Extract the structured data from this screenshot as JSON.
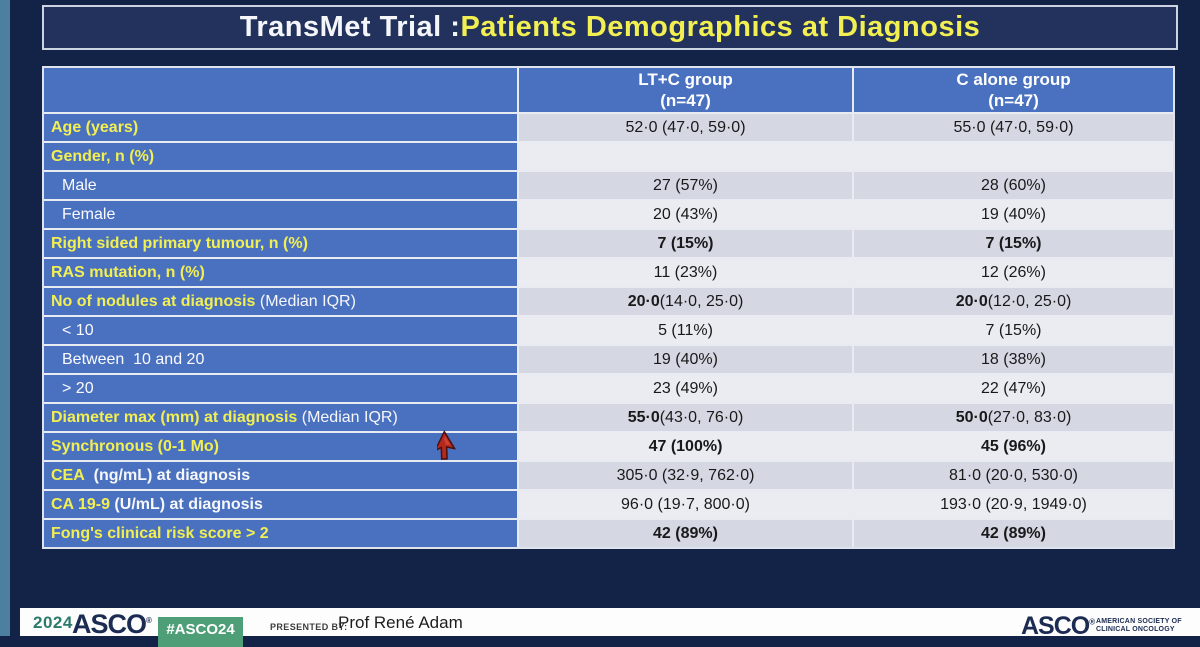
{
  "title": {
    "prefix": "TransMet Trial : ",
    "highlight": "Patients Demographics at Diagnosis"
  },
  "table": {
    "headers": [
      {
        "line1": "LT+C group",
        "line2": "(n=47)"
      },
      {
        "line1": "C alone group",
        "line2": "(n=47)"
      }
    ],
    "rows": [
      {
        "y": "Age (years)",
        "w": "",
        "sub": false,
        "wb": false,
        "v": [
          {
            "b": "",
            "r": "52·0 (47·0, 59·0)"
          },
          {
            "b": "",
            "r": "55·0 (47·0, 59·0)"
          }
        ]
      },
      {
        "y": "Gender, n (%)",
        "w": "",
        "sub": false,
        "wb": false,
        "v": [
          {
            "b": "",
            "r": ""
          },
          {
            "b": "",
            "r": ""
          }
        ]
      },
      {
        "y": "",
        "w": "Male",
        "sub": true,
        "wb": false,
        "v": [
          {
            "b": "",
            "r": "27 (57%)"
          },
          {
            "b": "",
            "r": "28 (60%)"
          }
        ]
      },
      {
        "y": "",
        "w": "Female",
        "sub": true,
        "wb": false,
        "v": [
          {
            "b": "",
            "r": "20 (43%)"
          },
          {
            "b": "",
            "r": "19 (40%)"
          }
        ]
      },
      {
        "y": "Right sided primary tumour, n (%)",
        "w": "",
        "sub": false,
        "wb": false,
        "v": [
          {
            "b": "7 (15%)",
            "r": ""
          },
          {
            "b": "7 (15%)",
            "r": ""
          }
        ]
      },
      {
        "y": "RAS mutation, n (%)",
        "w": "",
        "sub": false,
        "wb": false,
        "v": [
          {
            "b": "",
            "r": "11 (23%)"
          },
          {
            "b": "",
            "r": "12 (26%)"
          }
        ]
      },
      {
        "y": "No of nodules at diagnosis",
        "w": " (Median IQR)",
        "sub": false,
        "wb": false,
        "v": [
          {
            "b": "20·0",
            "r": " (14·0, 25·0)"
          },
          {
            "b": "20·0",
            "r": " (12·0, 25·0)"
          }
        ]
      },
      {
        "y": "",
        "w": "< 10",
        "sub": true,
        "wb": false,
        "v": [
          {
            "b": "",
            "r": "5 (11%)"
          },
          {
            "b": "",
            "r": "7 (15%)"
          }
        ]
      },
      {
        "y": "",
        "w": "Between  10 and 20",
        "sub": true,
        "wb": false,
        "v": [
          {
            "b": "",
            "r": "19 (40%)"
          },
          {
            "b": "",
            "r": "18 (38%)"
          }
        ]
      },
      {
        "y": "",
        "w": "> 20",
        "sub": true,
        "wb": false,
        "v": [
          {
            "b": "",
            "r": "23 (49%)"
          },
          {
            "b": "",
            "r": "22 (47%)"
          }
        ]
      },
      {
        "y": "Diameter max (mm) at diagnosis",
        "w": " (Median IQR)",
        "sub": false,
        "wb": false,
        "v": [
          {
            "b": "55·0",
            "r": " (43·0, 76·0)"
          },
          {
            "b": "50·0",
            "r": " (27·0, 83·0)"
          }
        ]
      },
      {
        "y": "Synchronous (0-1 Mo)",
        "w": "",
        "sub": false,
        "wb": false,
        "v": [
          {
            "b": "47 (100%)",
            "r": ""
          },
          {
            "b": "45 (96%)",
            "r": ""
          }
        ]
      },
      {
        "y": "CEA",
        "w": "  (ng/mL) at diagnosis",
        "sub": false,
        "wb": true,
        "v": [
          {
            "b": "",
            "r": "305·0 (32·9, 762·0)"
          },
          {
            "b": "",
            "r": "81·0 (20·0, 530·0)"
          }
        ]
      },
      {
        "y": "CA 19-9",
        "w": " (U/mL) at diagnosis",
        "sub": false,
        "wb": true,
        "v": [
          {
            "b": "",
            "r": "96·0 (19·7, 800·0)"
          },
          {
            "b": "",
            "r": "193·0 (20·9, 1949·0)"
          }
        ]
      },
      {
        "y": "Fong's clinical risk score > 2",
        "w": "",
        "sub": false,
        "wb": false,
        "v": [
          {
            "b": "42 (89%)",
            "r": ""
          },
          {
            "b": "42 (89%)",
            "r": ""
          }
        ]
      }
    ]
  },
  "footer": {
    "year": "2024",
    "asco": "ASCO",
    "registered": "®",
    "hashtag": "#ASCO24",
    "presented_by_label": "PRESENTED BY:",
    "presenter": "Prof René Adam",
    "asco_right": "ASCO",
    "asco_right_line1": "AMERICAN SOCIETY OF",
    "asco_right_line2": "CLINICAL ONCOLOGY"
  },
  "colors": {
    "background_navy": "#132247",
    "side_strip_teal": "#4d7fa0",
    "title_box_fill": "#22325c",
    "title_yellow": "#f2ef52",
    "table_blue": "#4a71bf",
    "row_dark": "#d5d8e3",
    "row_light": "#eaecf2",
    "badge_green": "#4e9f77",
    "asco_navy": "#1b2b52",
    "year_teal": "#2d7a6a"
  }
}
